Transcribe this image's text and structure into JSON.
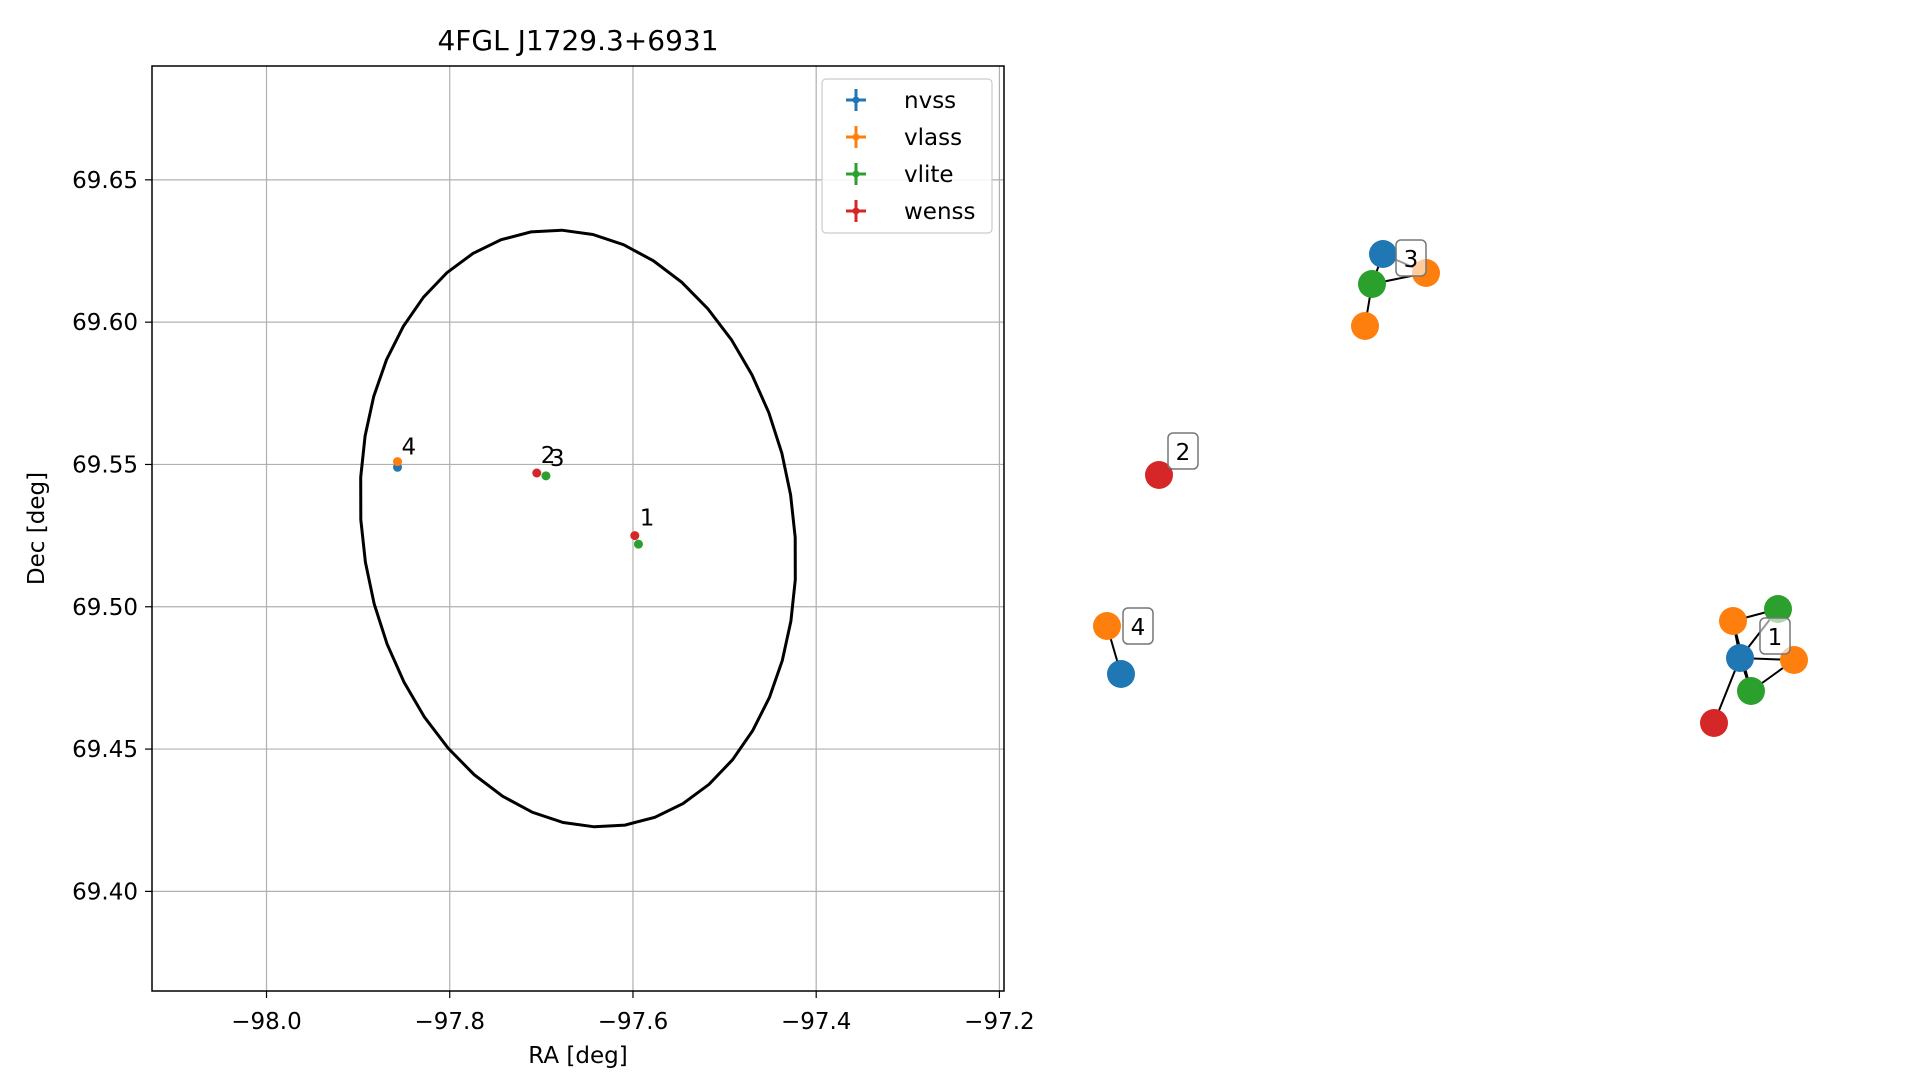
{
  "chart_data": [
    {
      "type": "scatter",
      "title": "4FGL J1729.3+6931",
      "xlabel": "RA [deg]",
      "ylabel": "Dec [deg]",
      "xlim": [
        -98.125,
        -97.195
      ],
      "ylim": [
        69.365,
        69.69
      ],
      "xticks": [
        -98.0,
        -97.8,
        -97.6,
        -97.4,
        -97.2
      ],
      "xtick_labels": [
        "−98.0",
        "−97.8",
        "−97.6",
        "−97.4",
        "−97.2"
      ],
      "yticks": [
        69.4,
        69.45,
        69.5,
        69.55,
        69.6,
        69.65
      ],
      "ytick_labels": [
        "69.40",
        "69.45",
        "69.50",
        "69.55",
        "69.60",
        "69.65"
      ],
      "grid": true,
      "legend_position": "top-right",
      "series": [
        {
          "name": "nvss",
          "color": "#1f77b4",
          "points": [
            {
              "x": -97.857,
              "y": 69.549
            }
          ]
        },
        {
          "name": "vlass",
          "color": "#ff7f0e",
          "points": [
            {
              "x": -97.857,
              "y": 69.551
            }
          ]
        },
        {
          "name": "vlite",
          "color": "#2ca02c",
          "points": [
            {
              "x": -97.695,
              "y": 69.546
            },
            {
              "x": -97.594,
              "y": 69.522
            }
          ]
        },
        {
          "name": "wenss",
          "color": "#d62728",
          "points": [
            {
              "x": -97.705,
              "y": 69.547
            },
            {
              "x": -97.598,
              "y": 69.525
            }
          ]
        }
      ],
      "annotations": [
        {
          "text": "1",
          "x": -97.597,
          "y": 69.525
        },
        {
          "text": "2",
          "x": -97.705,
          "y": 69.547
        },
        {
          "text": "3",
          "x": -97.695,
          "y": 69.546
        },
        {
          "text": "4",
          "x": -97.857,
          "y": 69.55
        }
      ],
      "ellipse": {
        "center_x": -97.66,
        "center_y": 69.5275,
        "ra_halfwidth": 0.235,
        "dec_halfheight": 0.1055,
        "color": "#000000"
      }
    },
    {
      "type": "network",
      "node_colors": {
        "nvss": "#1f77b4",
        "vlass": "#ff7f0e",
        "vlite": "#2ca02c",
        "wenss": "#d62728"
      },
      "clusters": [
        {
          "label": "1",
          "nodes": [
            "nvss",
            "vlass",
            "vlass",
            "vlite",
            "vlite",
            "wenss"
          ]
        },
        {
          "label": "2",
          "nodes": [
            "wenss"
          ]
        },
        {
          "label": "3",
          "nodes": [
            "nvss",
            "vlass",
            "vlass",
            "vlite"
          ]
        },
        {
          "label": "4",
          "nodes": [
            "nvss",
            "vlass"
          ]
        }
      ]
    }
  ]
}
